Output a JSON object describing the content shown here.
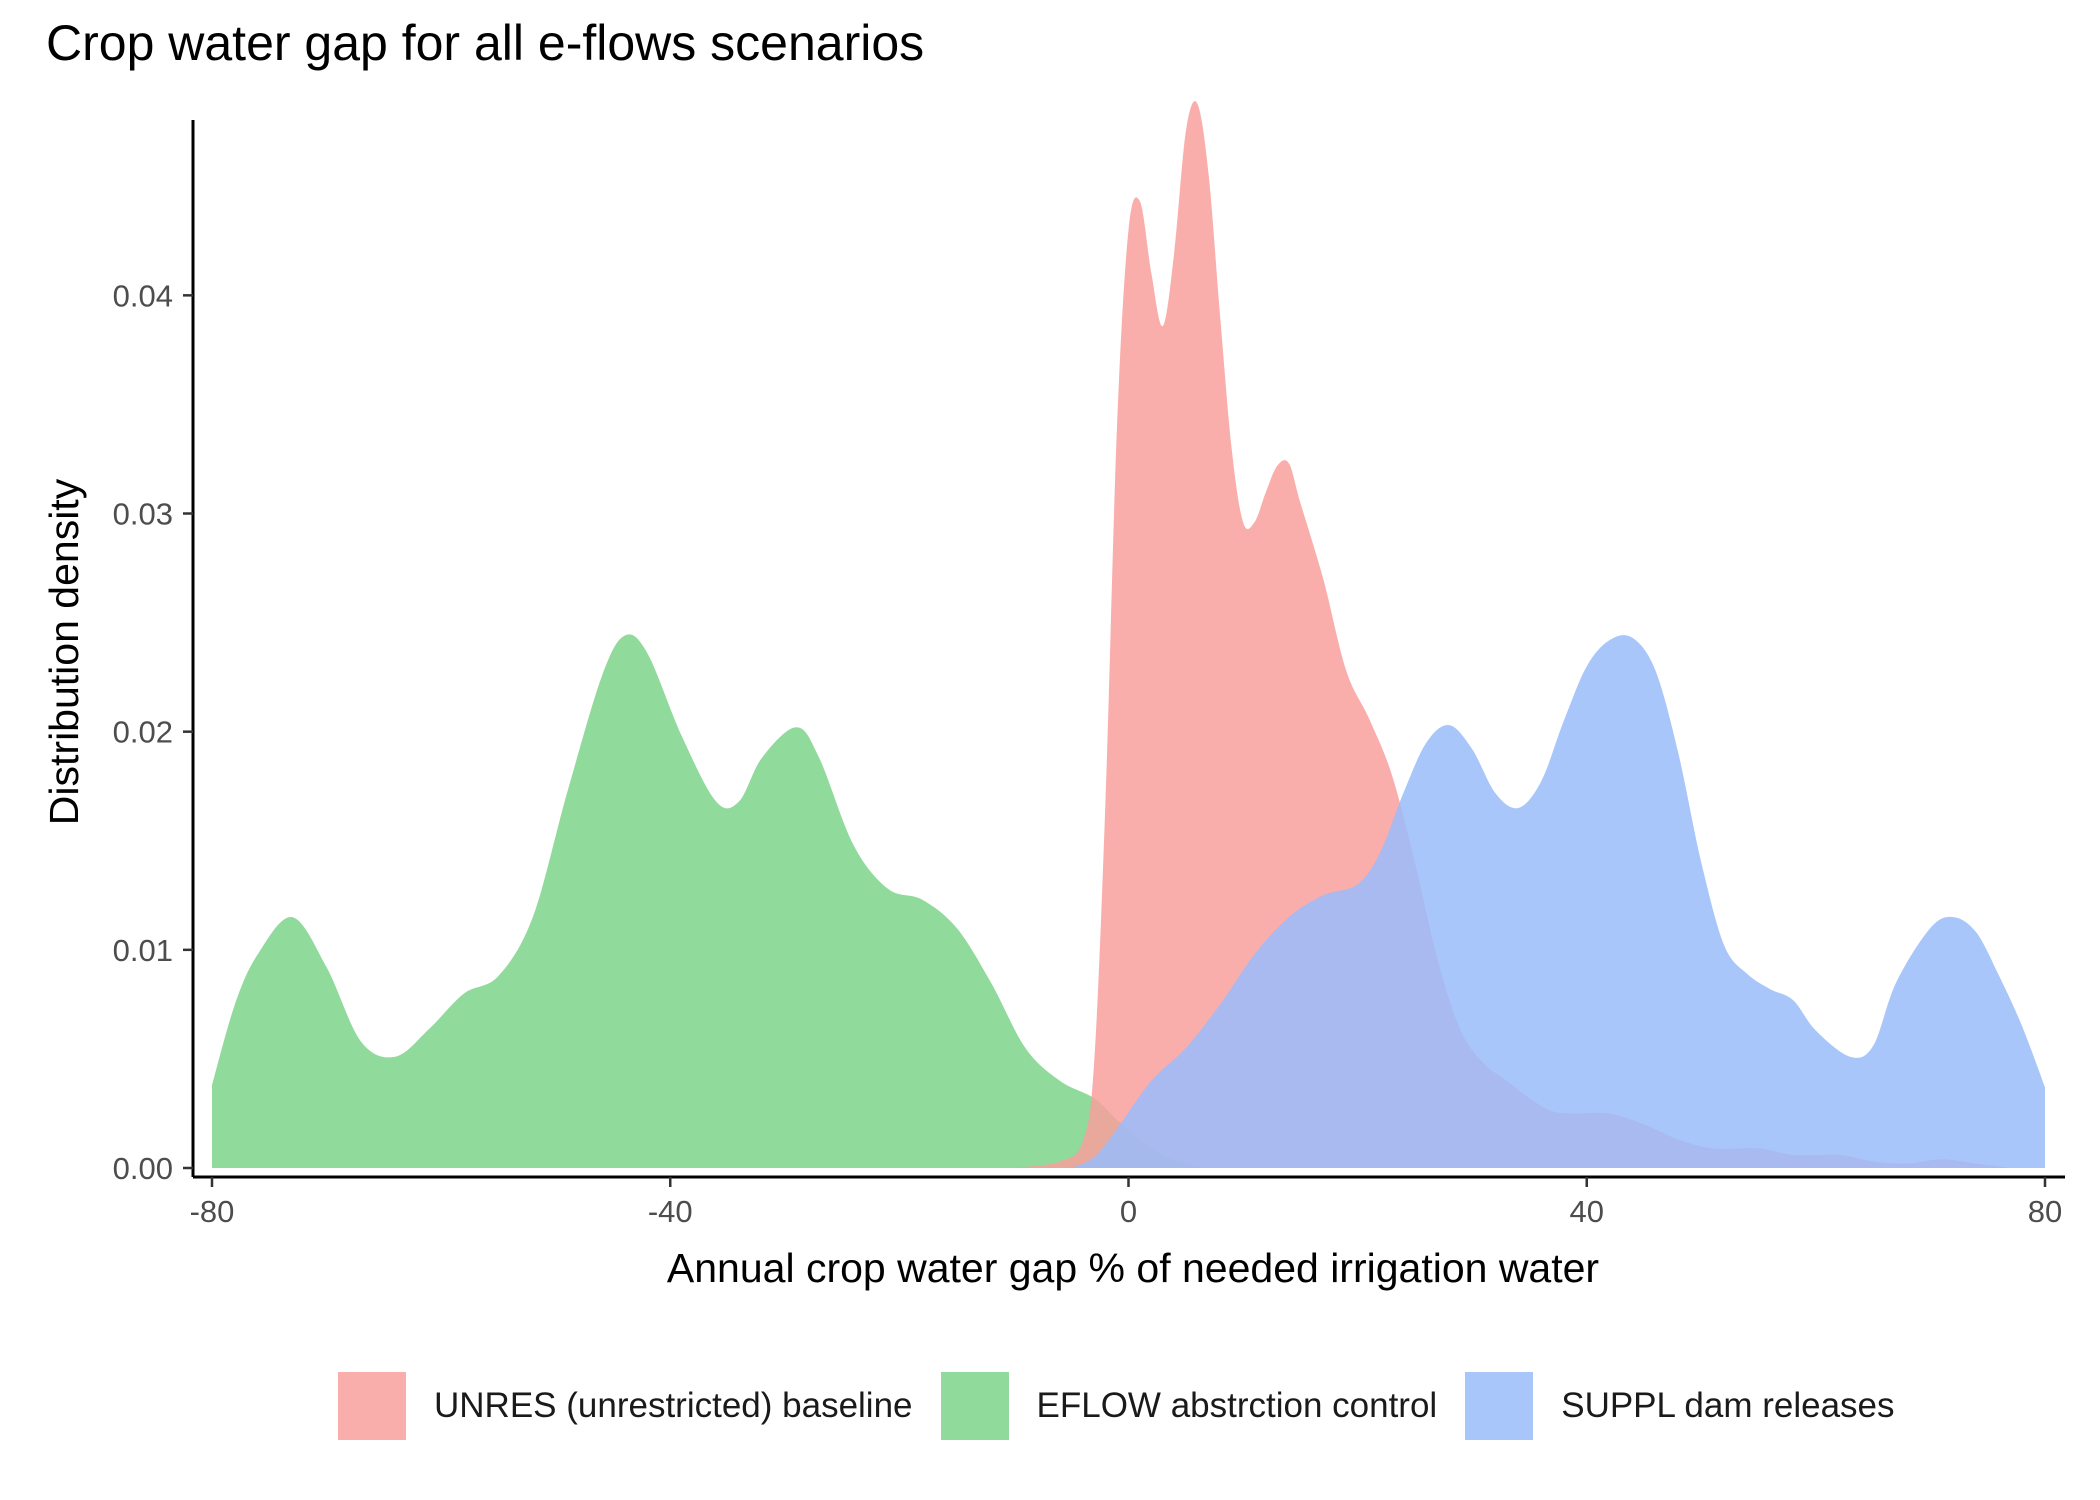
{
  "chart_data": {
    "type": "area",
    "subtype": "density",
    "title": "Crop water gap for all e-flows scenarios",
    "xlabel": "Annual crop water gap % of needed irrigation water",
    "ylabel": "Distribution density",
    "xlim": [
      -80,
      80
    ],
    "ylim": [
      0,
      0.049
    ],
    "x_ticks": [
      -80,
      -40,
      0,
      40,
      80
    ],
    "x_tick_labels": [
      "-80",
      "-40",
      "0",
      "40",
      "80"
    ],
    "y_ticks": [
      0.0,
      0.01,
      0.02,
      0.03,
      0.04
    ],
    "y_tick_labels": [
      "0.00",
      "0.01",
      "0.02",
      "0.03",
      "0.04"
    ],
    "grid": false,
    "legend_position": "bottom",
    "series": [
      {
        "name": "EFLOW abstrction control",
        "color": "#7CD38A",
        "points": [
          [
            -80,
            0.0038
          ],
          [
            -78,
            0.0075
          ],
          [
            -76,
            0.0098
          ],
          [
            -73,
            0.0115
          ],
          [
            -70,
            0.0092
          ],
          [
            -67,
            0.0058
          ],
          [
            -64,
            0.0051
          ],
          [
            -61,
            0.0064
          ],
          [
            -58,
            0.008
          ],
          [
            -55,
            0.0088
          ],
          [
            -52,
            0.0115
          ],
          [
            -49,
            0.0172
          ],
          [
            -46,
            0.0225
          ],
          [
            -44,
            0.0244
          ],
          [
            -42,
            0.0236
          ],
          [
            -39,
            0.0198
          ],
          [
            -36,
            0.0168
          ],
          [
            -34,
            0.0168
          ],
          [
            -32,
            0.0188
          ],
          [
            -29,
            0.0202
          ],
          [
            -27,
            0.0188
          ],
          [
            -24,
            0.0148
          ],
          [
            -21,
            0.0128
          ],
          [
            -18,
            0.0123
          ],
          [
            -15,
            0.011
          ],
          [
            -12,
            0.0085
          ],
          [
            -9,
            0.0055
          ],
          [
            -6,
            0.004
          ],
          [
            -3,
            0.0032
          ],
          [
            -1,
            0.0022
          ],
          [
            1,
            0.0013
          ],
          [
            3,
            0.0006
          ],
          [
            5,
            0.0002
          ],
          [
            7,
            0.0
          ]
        ]
      },
      {
        "name": "UNRES (unrestricted) baseline",
        "color": "#F8A09C",
        "points": [
          [
            -10,
            0.0
          ],
          [
            -6,
            0.0003
          ],
          [
            -4,
            0.0012
          ],
          [
            -3,
            0.0048
          ],
          [
            -2,
            0.017
          ],
          [
            -1,
            0.034
          ],
          [
            0,
            0.043
          ],
          [
            1,
            0.0443
          ],
          [
            2,
            0.041
          ],
          [
            3,
            0.0386
          ],
          [
            4,
            0.042
          ],
          [
            5,
            0.0475
          ],
          [
            6,
            0.0488
          ],
          [
            7,
            0.0455
          ],
          [
            8,
            0.039
          ],
          [
            9,
            0.033
          ],
          [
            10,
            0.0296
          ],
          [
            11,
            0.0296
          ],
          [
            12,
            0.031
          ],
          [
            13,
            0.0322
          ],
          [
            14,
            0.0323
          ],
          [
            15,
            0.0305
          ],
          [
            17,
            0.027
          ],
          [
            19,
            0.0228
          ],
          [
            21,
            0.0206
          ],
          [
            23,
            0.018
          ],
          [
            25,
            0.014
          ],
          [
            27,
            0.0095
          ],
          [
            29,
            0.0063
          ],
          [
            31,
            0.0048
          ],
          [
            33,
            0.004
          ],
          [
            35,
            0.0032
          ],
          [
            37,
            0.0026
          ],
          [
            39,
            0.0025
          ],
          [
            42,
            0.0025
          ],
          [
            45,
            0.002
          ],
          [
            48,
            0.0013
          ],
          [
            51,
            0.0009
          ],
          [
            55,
            0.0009
          ],
          [
            58,
            0.0006
          ],
          [
            62,
            0.0006
          ],
          [
            65,
            0.0003
          ],
          [
            68,
            0.0002
          ],
          [
            71,
            0.0004
          ],
          [
            74,
            0.0002
          ],
          [
            77,
            0.0
          ]
        ]
      },
      {
        "name": "SUPPL dam releases",
        "color": "#9ABCFA",
        "points": [
          [
            -5,
            0.0
          ],
          [
            -3,
            0.0005
          ],
          [
            -1,
            0.0018
          ],
          [
            2,
            0.004
          ],
          [
            5,
            0.0055
          ],
          [
            8,
            0.0075
          ],
          [
            11,
            0.0098
          ],
          [
            14,
            0.0115
          ],
          [
            17,
            0.0125
          ],
          [
            20,
            0.013
          ],
          [
            22,
            0.0145
          ],
          [
            24,
            0.0172
          ],
          [
            26,
            0.0195
          ],
          [
            28,
            0.0203
          ],
          [
            30,
            0.0192
          ],
          [
            32,
            0.0172
          ],
          [
            34,
            0.0165
          ],
          [
            36,
            0.0177
          ],
          [
            38,
            0.0205
          ],
          [
            40,
            0.023
          ],
          [
            42,
            0.0242
          ],
          [
            44,
            0.0243
          ],
          [
            46,
            0.0228
          ],
          [
            48,
            0.019
          ],
          [
            50,
            0.014
          ],
          [
            52,
            0.0102
          ],
          [
            54,
            0.0089
          ],
          [
            56,
            0.0082
          ],
          [
            58,
            0.0077
          ],
          [
            60,
            0.0063
          ],
          [
            63,
            0.0051
          ],
          [
            65,
            0.0056
          ],
          [
            67,
            0.0085
          ],
          [
            70,
            0.011
          ],
          [
            72,
            0.0115
          ],
          [
            74,
            0.0108
          ],
          [
            76,
            0.0088
          ],
          [
            78,
            0.0065
          ],
          [
            80,
            0.0037
          ]
        ]
      }
    ],
    "legend_order": [
      "UNRES (unrestricted) baseline",
      "EFLOW abstrction control",
      "SUPPL dam releases"
    ]
  }
}
